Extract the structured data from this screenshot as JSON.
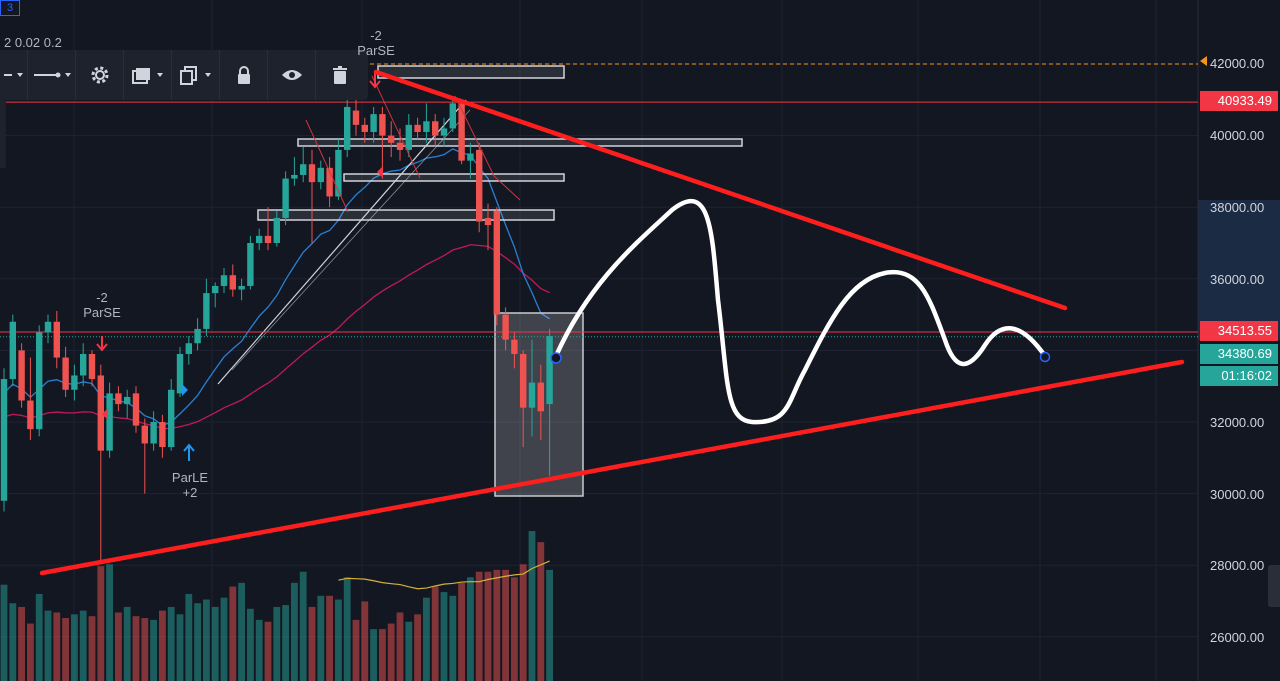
{
  "header": {
    "tab_label": "3",
    "params_text": "2 0.02 0.2"
  },
  "toolbar": {
    "items": [
      {
        "name": "line-style-icon"
      },
      {
        "name": "line-width-icon"
      },
      {
        "name": "gear-icon"
      },
      {
        "name": "layers-icon"
      },
      {
        "name": "clone-icon"
      },
      {
        "name": "lock-icon"
      },
      {
        "name": "eye-icon"
      },
      {
        "name": "trash-icon"
      }
    ]
  },
  "signals": {
    "top_parse": {
      "count": "-2",
      "label": "ParSE"
    },
    "left_parse": {
      "count": "-2",
      "label": "ParSE"
    },
    "parle": {
      "label": "ParLE",
      "count": "+2"
    }
  },
  "price_axis": {
    "ticks": [
      "42000.00",
      "40000.00",
      "38000.00",
      "36000.00",
      "32000.00",
      "30000.00",
      "28000.00",
      "26000.00"
    ],
    "tags": {
      "high_line": "40933.49",
      "resistance": "34513.55",
      "last_price": "34380.69",
      "countdown": "01:16:02"
    }
  },
  "colors": {
    "background": "#131722",
    "up_candle": "#26a69a",
    "down_candle": "#ef5350",
    "trend_lines": "#ff1e1e",
    "ema_fast": "#2a7fd4",
    "ema_slow": "#c2185b",
    "volume_ma": "#d4b13a",
    "last_price_tag": "#26a69a",
    "level_tag": "#f23645",
    "alert_line": "#f7931a"
  },
  "chart_data": {
    "type": "candlestick",
    "y_range": [
      25000,
      43000
    ],
    "alert_level": 42000,
    "horizontal_levels": [
      40933.49,
      34513.55
    ],
    "last_price": 34380.69,
    "ohlc": [
      [
        29800,
        33200,
        29500,
        33500
      ],
      [
        33200,
        34800,
        33000,
        35000
      ],
      [
        34000,
        32600,
        32400,
        34200
      ],
      [
        32600,
        31800,
        31500,
        33800
      ],
      [
        31800,
        34500,
        31600,
        34700
      ],
      [
        34500,
        34800,
        34200,
        35000
      ],
      [
        34800,
        33800,
        33500,
        35100
      ],
      [
        33800,
        32900,
        32700,
        34100
      ],
      [
        32900,
        33300,
        32600,
        33600
      ],
      [
        33300,
        33900,
        33000,
        34200
      ],
      [
        33900,
        33200,
        33000,
        34000
      ],
      [
        33300,
        31200,
        28100,
        33600
      ],
      [
        31200,
        32800,
        31000,
        33100
      ],
      [
        32800,
        32500,
        32300,
        33000
      ],
      [
        32500,
        32700,
        32100,
        32900
      ],
      [
        32800,
        31900,
        31700,
        33000
      ],
      [
        31900,
        31400,
        30000,
        32100
      ],
      [
        31400,
        32000,
        31200,
        32300
      ],
      [
        32000,
        31300,
        31000,
        32200
      ],
      [
        31300,
        32900,
        31200,
        33200
      ],
      [
        32800,
        33900,
        32700,
        34100
      ],
      [
        33900,
        34200,
        33600,
        34400
      ],
      [
        34200,
        34600,
        34000,
        34900
      ],
      [
        34600,
        35600,
        34400,
        36000
      ],
      [
        35600,
        35800,
        35200,
        35900
      ],
      [
        35800,
        36100,
        35600,
        36300
      ],
      [
        36100,
        35700,
        35500,
        36400
      ],
      [
        35700,
        35800,
        35400,
        36000
      ],
      [
        35800,
        37000,
        35700,
        37200
      ],
      [
        37000,
        37200,
        36800,
        37400
      ],
      [
        37200,
        37000,
        36800,
        38000
      ],
      [
        37000,
        37700,
        36900,
        37900
      ],
      [
        37700,
        38800,
        37500,
        39000
      ],
      [
        38800,
        38900,
        38600,
        39400
      ],
      [
        38900,
        39200,
        38700,
        39700
      ],
      [
        39200,
        38700,
        37000,
        39600
      ],
      [
        38700,
        39100,
        38500,
        39300
      ],
      [
        39100,
        38300,
        38000,
        39400
      ],
      [
        38300,
        39600,
        38200,
        39900
      ],
      [
        39600,
        40800,
        39400,
        41000
      ],
      [
        40700,
        40300,
        40000,
        41400
      ],
      [
        40300,
        40100,
        39800,
        40500
      ],
      [
        40100,
        40600,
        39800,
        40800
      ],
      [
        40600,
        40000,
        38800,
        40800
      ],
      [
        40000,
        39800,
        39400,
        40400
      ],
      [
        39800,
        39600,
        39300,
        40200
      ],
      [
        39600,
        40300,
        39400,
        40600
      ],
      [
        40300,
        40100,
        39900,
        40500
      ],
      [
        40100,
        40400,
        39800,
        40900
      ],
      [
        40400,
        40000,
        39700,
        40600
      ],
      [
        40000,
        40200,
        39700,
        40500
      ],
      [
        40200,
        40900,
        40100,
        41000
      ],
      [
        40900,
        39300,
        39200,
        41000
      ],
      [
        39300,
        39500,
        38800,
        39800
      ],
      [
        39600,
        37600,
        37300,
        39800
      ],
      [
        37700,
        37500,
        36800,
        38100
      ],
      [
        37900,
        35000,
        34700,
        38000
      ],
      [
        35000,
        34300,
        34000,
        35200
      ],
      [
        34300,
        33900,
        33500,
        34500
      ],
      [
        33900,
        32400,
        31300,
        34000
      ],
      [
        32400,
        33100,
        31600,
        34300
      ],
      [
        33100,
        32300,
        31500,
        33600
      ],
      [
        32500,
        34400,
        30500,
        34600
      ]
    ],
    "volume": [
      52,
      42,
      40,
      31,
      47,
      38,
      37,
      34,
      36,
      38,
      35,
      62,
      63,
      37,
      40,
      35,
      34,
      33,
      38,
      40,
      36,
      47,
      42,
      44,
      40,
      45,
      51,
      53,
      39,
      33,
      32,
      40,
      41,
      53,
      59,
      40,
      46,
      46,
      44,
      56,
      33,
      43,
      28,
      28,
      31,
      37,
      32,
      36,
      45,
      51,
      48,
      46,
      53,
      56,
      59,
      59,
      60,
      60,
      56,
      63,
      81,
      75,
      60
    ],
    "annotations": [
      "Symmetrical triangle (descending resistance, ascending support)",
      "Projected price path"
    ]
  }
}
